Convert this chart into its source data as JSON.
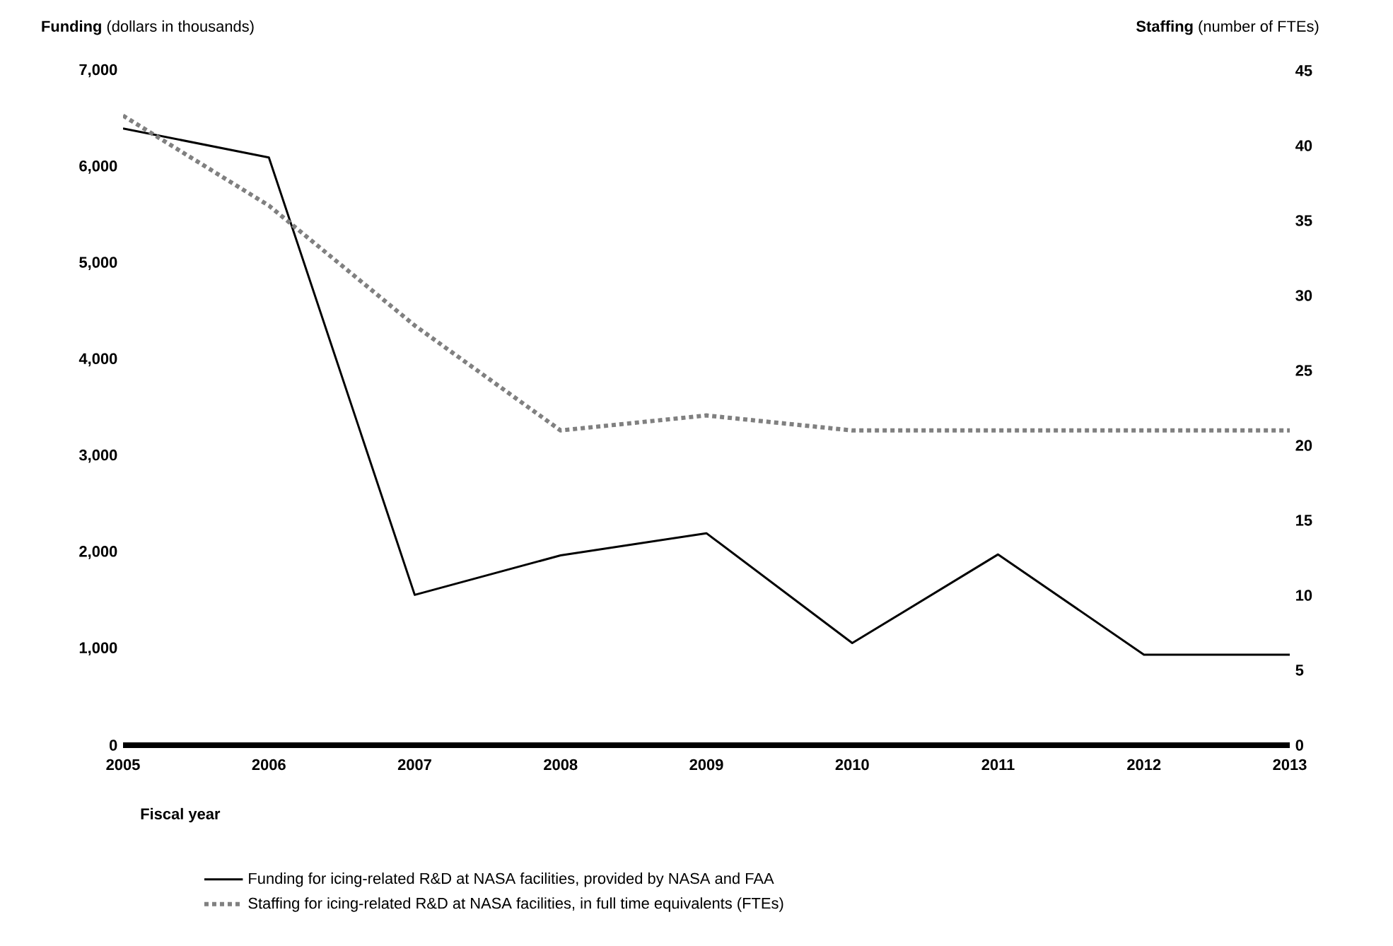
{
  "chart_data": {
    "type": "line",
    "ylabel": "**Funding** (dollars in thousands)",
    "y2label": "**Staffing** (number of FTEs)",
    "xlabel": "Fiscal year",
    "x": [
      2005,
      2006,
      2007,
      2008,
      2009,
      2010,
      2011,
      2012,
      2013
    ],
    "xlim": [
      2005,
      2013
    ],
    "xticks": [
      2005,
      2006,
      2007,
      2008,
      2009,
      2010,
      2011,
      2012,
      2013
    ],
    "ylim": [
      0,
      7000
    ],
    "yticks": [
      0,
      {
        "value": 1000,
        "label": "1,000"
      },
      {
        "value": 2000,
        "label": "2,000"
      },
      {
        "value": 3000,
        "label": "3,000"
      },
      {
        "value": 4000,
        "label": "4,000"
      },
      {
        "value": 5000,
        "label": "5,000"
      },
      {
        "value": 6000,
        "label": "6,000"
      },
      {
        "value": 7000,
        "label": "7,000"
      }
    ],
    "y2lim": [
      0,
      45
    ],
    "y2ticks": [
      0,
      5,
      10,
      15,
      20,
      25,
      30,
      35,
      40,
      45
    ],
    "legend": "bottom",
    "marker": "none",
    "series": [
      {
        "name": "Funding for icing-related R&D at NASA facilities, provided by NASA and FAA",
        "color": "#000000",
        "line_style": "solid",
        "values": [
          6400,
          6100,
          1560,
          1970,
          2200,
          1060,
          1980,
          940,
          940
        ]
      },
      {
        "name": "Staffing for icing-related R&D at NASA facilities, in full time equivalents (FTEs)",
        "color": "#808080",
        "line_style": "dashed",
        "axis": "y2",
        "values": [
          42,
          36,
          28,
          21,
          22,
          21,
          21,
          21,
          21
        ]
      }
    ]
  }
}
